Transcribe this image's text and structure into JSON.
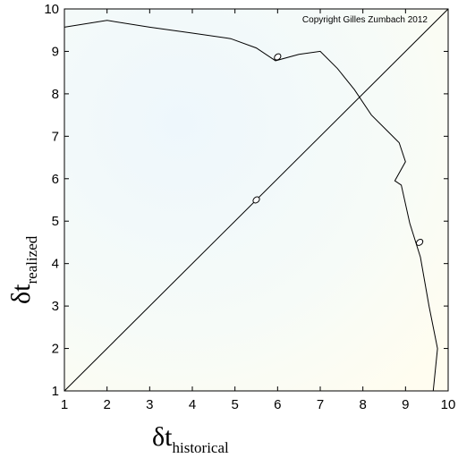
{
  "chart_data": {
    "type": "line",
    "copyright": "Copyright Gilles Zumbach 2012",
    "xlabel_main": "δt",
    "xlabel_sub": "historical",
    "ylabel_main": "δt",
    "ylabel_sub": "realized",
    "xlim": [
      1,
      10
    ],
    "ylim": [
      1,
      10
    ],
    "xticks": [
      "1",
      "2",
      "3",
      "4",
      "5",
      "6",
      "7",
      "8",
      "9",
      "10"
    ],
    "yticks": [
      "1",
      "2",
      "3",
      "4",
      "5",
      "6",
      "7",
      "8",
      "9",
      "10"
    ],
    "grid": false,
    "series": [
      {
        "kind": "diagonal",
        "x": [
          1,
          10
        ],
        "y": [
          1,
          10
        ]
      },
      {
        "kind": "contour",
        "x": [
          1.0,
          2.0,
          3.0,
          4.0,
          4.9,
          5.5,
          5.95,
          6.5,
          7.0,
          7.4,
          7.8,
          8.2,
          8.6,
          8.85,
          9.0,
          8.75,
          8.9,
          9.1,
          9.35,
          9.55,
          9.75,
          9.65
        ],
        "y": [
          9.57,
          9.73,
          9.57,
          9.43,
          9.3,
          9.08,
          8.78,
          8.93,
          9.0,
          8.6,
          8.1,
          7.5,
          7.1,
          6.85,
          6.4,
          5.95,
          5.85,
          4.95,
          4.15,
          3.0,
          2.0,
          1.0
        ]
      }
    ],
    "markers": [
      {
        "x": 6.0,
        "y": 8.87
      },
      {
        "x": 5.5,
        "y": 5.5
      },
      {
        "x": 9.33,
        "y": 4.5
      }
    ]
  }
}
